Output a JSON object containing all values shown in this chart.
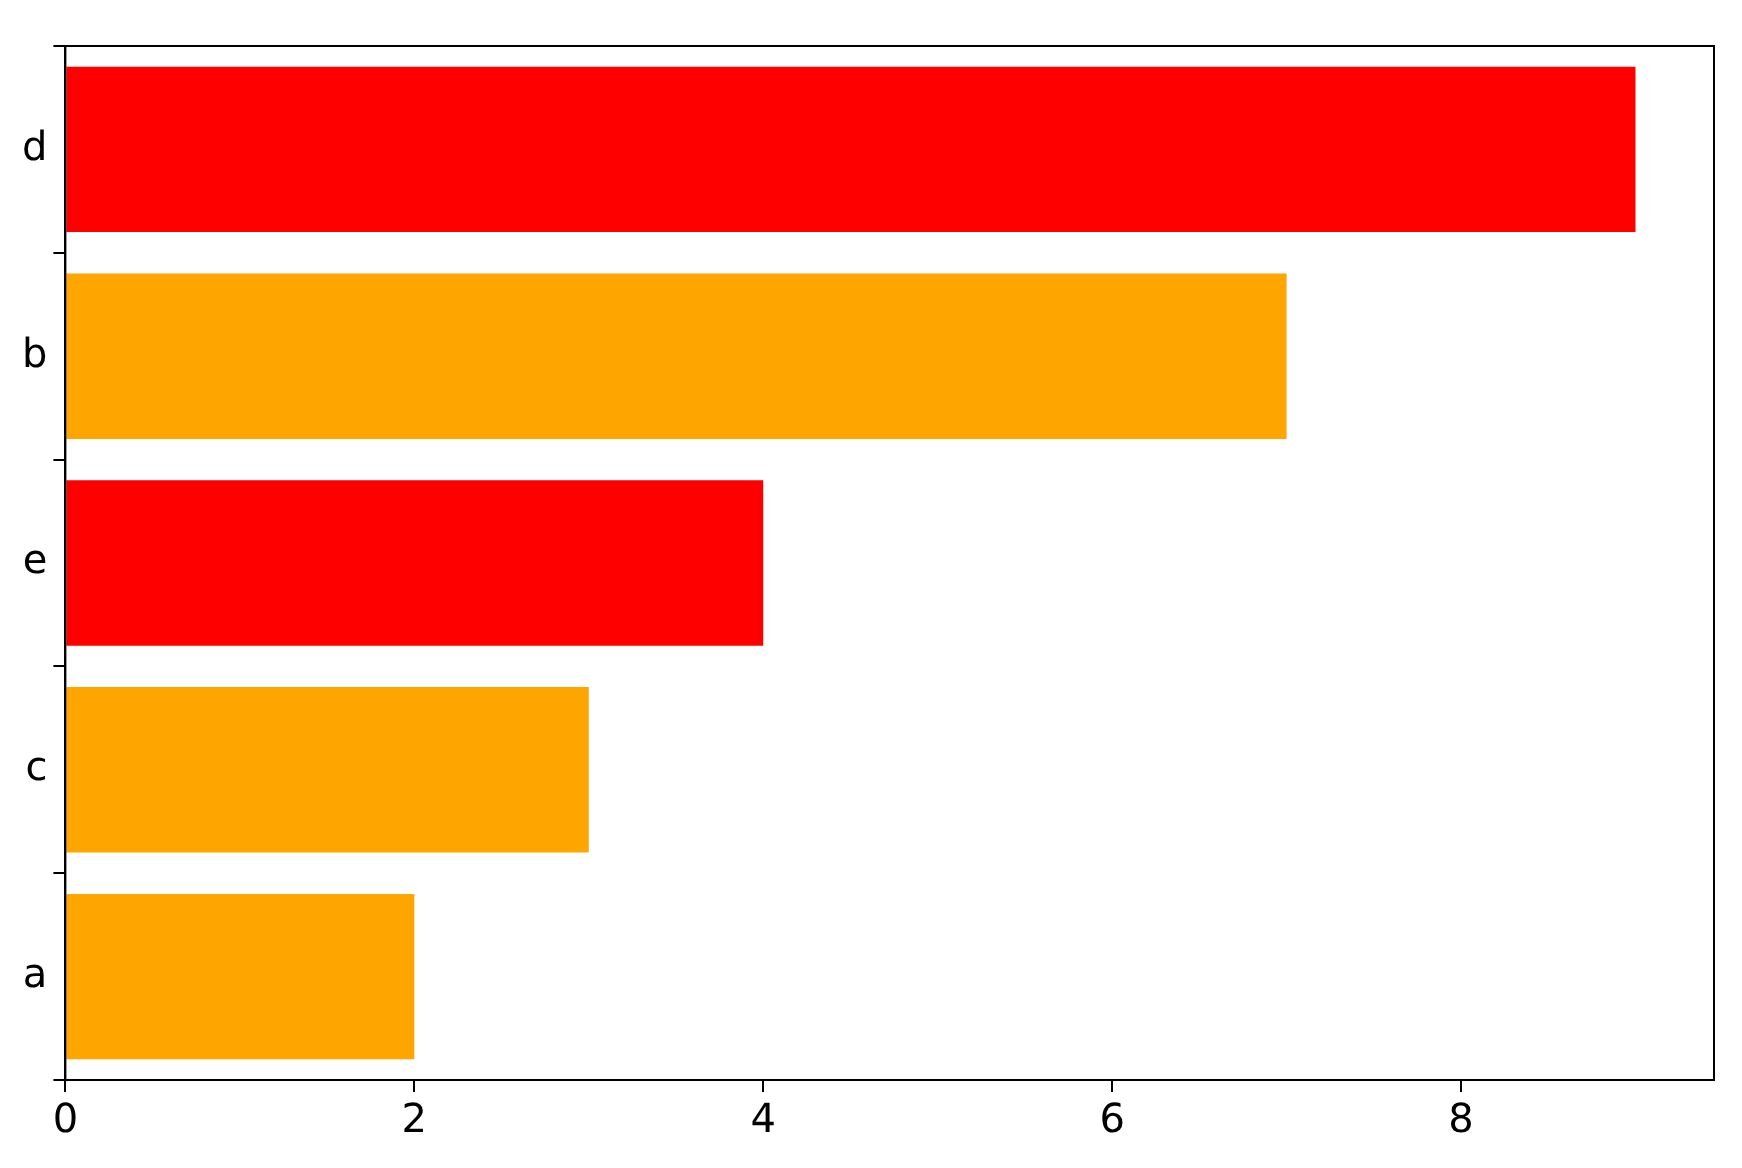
{
  "chart_data": {
    "type": "bar",
    "orientation": "horizontal",
    "categories": [
      "d",
      "b",
      "e",
      "c",
      "a"
    ],
    "values": [
      9,
      7,
      4,
      3,
      2
    ],
    "colors": [
      "#ff0000",
      "#ffa500",
      "#ff0000",
      "#ffa500",
      "#ffa500"
    ],
    "xlim": [
      0,
      9.45
    ],
    "xticks": [
      0,
      2,
      4,
      6,
      8
    ],
    "grid": false,
    "legend": false
  }
}
